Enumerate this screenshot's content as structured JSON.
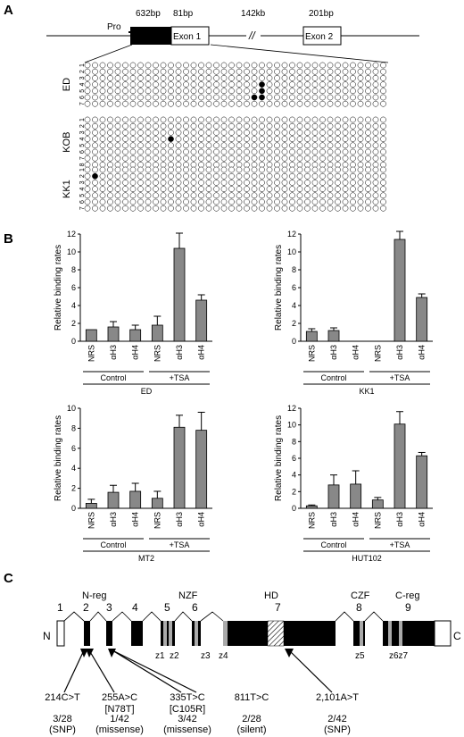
{
  "panel_a": {
    "label": "A",
    "gene_labels": {
      "pro": "Pro",
      "exon1": "Exon 1",
      "exon2": "Exon 2",
      "size_promoter": "632bp",
      "size_exon1": "81bp",
      "size_intron": "142kb",
      "size_exon2": "201bp"
    },
    "samples": [
      {
        "name": "ED",
        "row_labels": [
          "1",
          "2",
          "3",
          "4",
          "5",
          "6",
          "7"
        ],
        "cols": 40,
        "methylated": [
          [
            4,
            24
          ],
          [
            5,
            24
          ],
          [
            6,
            23
          ],
          [
            6,
            24
          ]
        ]
      },
      {
        "name": "KOB",
        "row_labels": [
          "1",
          "2",
          "3",
          "4",
          "5",
          "6",
          "7",
          "8"
        ],
        "cols": 40,
        "methylated": [
          [
            4,
            12
          ]
        ]
      },
      {
        "name": "KK1",
        "row_labels": [
          "1",
          "2",
          "3",
          "4",
          "5",
          "6",
          "7"
        ],
        "cols": 40,
        "methylated": [
          [
            2,
            2
          ]
        ]
      }
    ]
  },
  "panel_b": {
    "label": "B",
    "ylabel": "Relative binding rates",
    "charts": [
      {
        "id": "ED",
        "cell_line": "ED",
        "ylim": [
          0,
          12
        ],
        "yticks": [
          "0",
          "2",
          "4",
          "6",
          "8",
          "10",
          "12"
        ],
        "categories": [
          "NRS",
          "αH3",
          "αH4",
          "NRS",
          "αH3",
          "αH4"
        ],
        "values": [
          1.3,
          1.6,
          1.3,
          1.8,
          10.4,
          4.6
        ],
        "errors": [
          0,
          0.6,
          0.5,
          1.0,
          1.7,
          0.6
        ],
        "groups": [
          "Control",
          "+TSA"
        ]
      },
      {
        "id": "KK1",
        "cell_line": "KK1",
        "ylim": [
          0,
          12
        ],
        "yticks": [
          "0",
          "2",
          "4",
          "6",
          "8",
          "10",
          "12"
        ],
        "categories": [
          "NRS",
          "αH3",
          "αH4",
          "NRS",
          "αH3",
          "αH4"
        ],
        "values": [
          1.1,
          1.2,
          0,
          0,
          11.4,
          4.9
        ],
        "errors": [
          0.3,
          0.3,
          0,
          0,
          0.9,
          0.4
        ],
        "groups": [
          "Control",
          "+TSA"
        ]
      },
      {
        "id": "MT2",
        "cell_line": "MT2",
        "ylim": [
          0,
          10
        ],
        "yticks": [
          "0",
          "2",
          "4",
          "6",
          "8",
          "10"
        ],
        "categories": [
          "NRS",
          "αH3",
          "αH4",
          "NRS",
          "αH3",
          "αH4"
        ],
        "values": [
          0.5,
          1.6,
          1.7,
          1.0,
          8.1,
          7.8
        ],
        "errors": [
          0.4,
          0.7,
          0.8,
          0.7,
          1.2,
          1.8
        ],
        "groups": [
          "Control",
          "+TSA"
        ]
      },
      {
        "id": "HUT102",
        "cell_line": "HUT102",
        "ylim": [
          0,
          12
        ],
        "yticks": [
          "0",
          "2",
          "4",
          "6",
          "8",
          "10",
          "12"
        ],
        "categories": [
          "NRS",
          "αH3",
          "αH4",
          "NRS",
          "αH3",
          "αH4"
        ],
        "values": [
          0.3,
          2.8,
          2.9,
          1.0,
          10.1,
          6.3
        ],
        "errors": [
          0.1,
          1.2,
          1.6,
          0.3,
          1.5,
          0.4
        ],
        "groups": [
          "Control",
          "+TSA"
        ]
      }
    ],
    "chart_data": [
      {
        "type": "bar",
        "title": "ED",
        "ylabel": "Relative binding rates",
        "ylim": [
          0,
          12
        ],
        "categories": [
          "NRS",
          "αH3",
          "αH4",
          "NRS (+TSA)",
          "αH3 (+TSA)",
          "αH4 (+TSA)"
        ],
        "values": [
          1.3,
          1.6,
          1.3,
          1.8,
          10.4,
          4.6
        ]
      },
      {
        "type": "bar",
        "title": "KK1",
        "ylabel": "Relative binding rates",
        "ylim": [
          0,
          12
        ],
        "categories": [
          "NRS",
          "αH3",
          "αH4",
          "NRS (+TSA)",
          "αH3 (+TSA)",
          "αH4 (+TSA)"
        ],
        "values": [
          1.1,
          1.2,
          0,
          0,
          11.4,
          4.9
        ]
      },
      {
        "type": "bar",
        "title": "MT2",
        "ylabel": "Relative binding rates",
        "ylim": [
          0,
          10
        ],
        "categories": [
          "NRS",
          "αH3",
          "αH4",
          "NRS (+TSA)",
          "αH3 (+TSA)",
          "αH4 (+TSA)"
        ],
        "values": [
          0.5,
          1.6,
          1.7,
          1.0,
          8.1,
          7.8
        ]
      },
      {
        "type": "bar",
        "title": "HUT102",
        "ylabel": "Relative binding rates",
        "ylim": [
          0,
          12
        ],
        "categories": [
          "NRS",
          "αH3",
          "αH4",
          "NRS (+TSA)",
          "αH3 (+TSA)",
          "αH4 (+TSA)"
        ],
        "values": [
          0.3,
          2.8,
          2.9,
          1.0,
          10.1,
          6.3
        ]
      }
    ]
  },
  "panel_c": {
    "label": "C",
    "n_label": "N",
    "c_label": "C",
    "exon_numbers": [
      "1",
      "2",
      "3",
      "4",
      "5",
      "6",
      "7",
      "8",
      "9"
    ],
    "region_labels": [
      "N-reg",
      "NZF",
      "HD",
      "CZF",
      "C-reg"
    ],
    "zinc_fingers": [
      "z1",
      "z2",
      "z3",
      "z4",
      "z5",
      "z6z7"
    ],
    "mutations": [
      {
        "change": "214C>T",
        "aa": "",
        "freq": "3/28",
        "type": "(SNP)"
      },
      {
        "change": "255A>C",
        "aa": "[N78T]",
        "freq": "1/42",
        "type": "(missense)"
      },
      {
        "change": "335T>C",
        "aa": "[C105R]",
        "freq": "3/42",
        "type": "(missense)"
      },
      {
        "change": "811T>C",
        "aa": "",
        "freq": "2/28",
        "type": "(silent)"
      },
      {
        "change": "2,101A>T",
        "aa": "",
        "freq": "2/42",
        "type": "(SNP)"
      }
    ]
  }
}
